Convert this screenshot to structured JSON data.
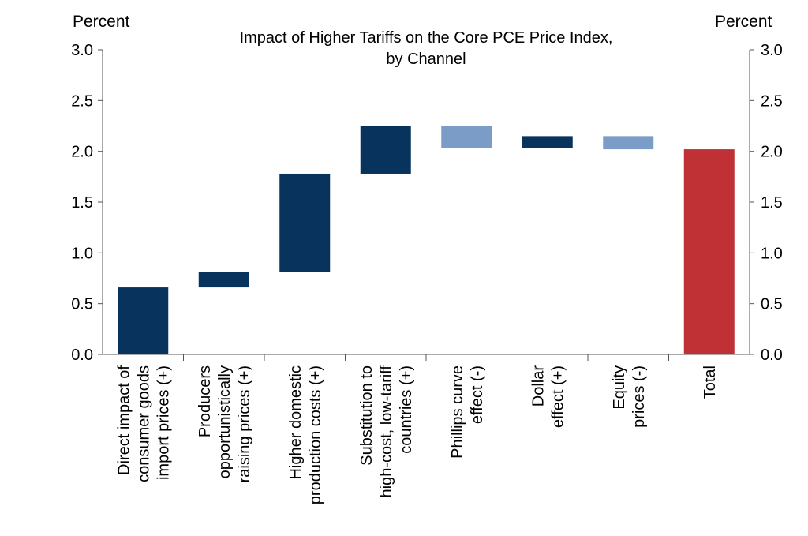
{
  "chart_data": {
    "type": "bar",
    "subtype": "waterfall",
    "title_line1": "Impact of Higher Tariffs on the Core PCE Price Index,",
    "title_line2": "by Channel",
    "ylabel_left": "Percent",
    "ylabel_right": "Percent",
    "ylim": [
      0,
      3.0
    ],
    "yticks": [
      "0.0",
      "0.5",
      "1.0",
      "1.5",
      "2.0",
      "2.5",
      "3.0"
    ],
    "grid": false,
    "colors": {
      "positive": "#08335d",
      "negative": "#7a9cc6",
      "total": "#bf3134"
    },
    "bars": [
      {
        "label": [
          "Direct impact of",
          "consumer goods",
          "import prices (+)"
        ],
        "start": 0.0,
        "end": 0.66,
        "kind": "positive"
      },
      {
        "label": [
          "Producers",
          "opportunistically",
          "raising prices (+)"
        ],
        "start": 0.66,
        "end": 0.81,
        "kind": "positive"
      },
      {
        "label": [
          "Higher domestic",
          "production costs (+)"
        ],
        "start": 0.81,
        "end": 1.78,
        "kind": "positive"
      },
      {
        "label": [
          "Substitution to",
          "high-cost, low-tariff",
          "countries (+)"
        ],
        "start": 1.78,
        "end": 2.25,
        "kind": "positive"
      },
      {
        "label": [
          "Phillips curve",
          "effect (-)"
        ],
        "start": 2.25,
        "end": 2.03,
        "kind": "negative"
      },
      {
        "label": [
          "Dollar",
          "effect (+)"
        ],
        "start": 2.03,
        "end": 2.15,
        "kind": "positive"
      },
      {
        "label": [
          "Equity",
          "prices (-)"
        ],
        "start": 2.15,
        "end": 2.02,
        "kind": "negative"
      },
      {
        "label": [
          "Total"
        ],
        "start": 0.0,
        "end": 2.02,
        "kind": "total"
      }
    ]
  }
}
